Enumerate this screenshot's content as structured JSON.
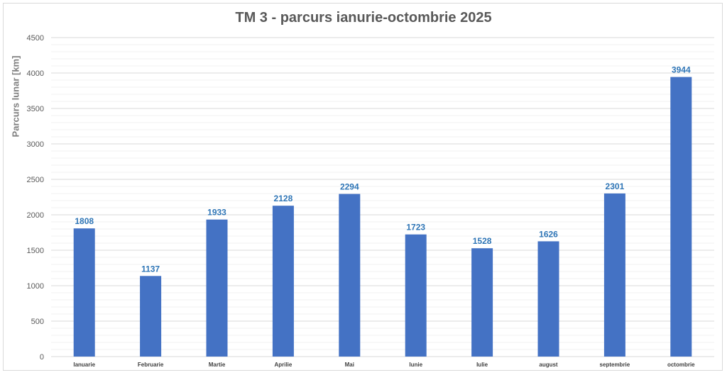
{
  "chart_data": {
    "type": "bar",
    "title": "TM 3 - parcurs ianurie-octombrie 2025",
    "xlabel": "",
    "ylabel": "Parcurs lunar [km]",
    "categories": [
      "Ianuarie",
      "Februarie",
      "Martie",
      "Aprilie",
      "Mai",
      "Iunie",
      "Iulie",
      "august",
      "septembrie",
      "octombrie"
    ],
    "values": [
      1808,
      1137,
      1933,
      2128,
      2294,
      1723,
      1528,
      1626,
      2301,
      3944
    ],
    "ylim": [
      0,
      4500
    ],
    "yticks": [
      0,
      500,
      1000,
      1500,
      2000,
      2500,
      3000,
      3500,
      4000,
      4500
    ],
    "ytick_labels": [
      "0",
      "500",
      "1000",
      "1500",
      "2000",
      "2500",
      "3000",
      "3500",
      "4000",
      "4500"
    ],
    "minor_gridline_step": 100,
    "grid": true,
    "legend": "none",
    "colors": {
      "bar": "#4472c4",
      "data_label": "#2e75b6",
      "major_grid": "#d9d9d9",
      "minor_grid": "#f0f0f0"
    }
  }
}
